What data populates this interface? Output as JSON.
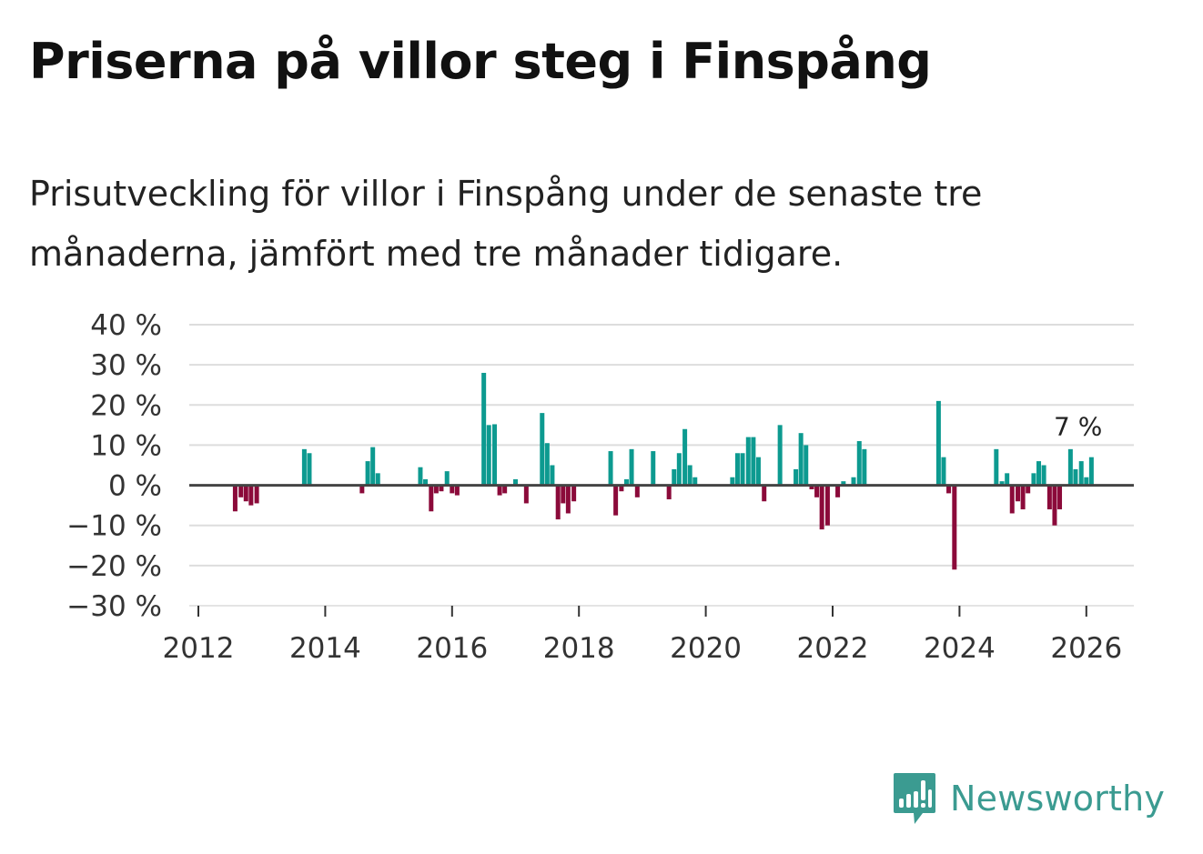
{
  "header": {
    "title": "Priserna på villor steg i Finspång",
    "subtitle": "Prisutveckling för villor i Finspång under de senaste tre månaderna, jämfört med tre månader tidigare."
  },
  "brand": {
    "name": "Newsworthy",
    "icon": "newsworthy-logo-icon",
    "color": "#3b9b91"
  },
  "colors": {
    "positive": "#0d9a90",
    "negative": "#8b0a3a",
    "grid": "#dddddd",
    "baseline": "#444444"
  },
  "chart_data": {
    "type": "bar",
    "title": "Priserna på villor steg i Finspång",
    "xlabel": "",
    "ylabel": "",
    "ylim": [
      -30,
      40
    ],
    "yticks": [
      -30,
      -20,
      -10,
      0,
      10,
      20,
      30,
      40
    ],
    "ytick_labels": [
      "−30 %",
      "−20 %",
      "−10 %",
      "0 %",
      "10 %",
      "20 %",
      "30 %",
      "40 %"
    ],
    "xlim": [
      2012,
      2026.8
    ],
    "xticks": [
      2012,
      2014,
      2016,
      2018,
      2020,
      2022,
      2024,
      2026
    ],
    "xtick_labels": [
      "2012",
      "2014",
      "2016",
      "2018",
      "2020",
      "2022",
      "2024",
      "2026"
    ],
    "last_value_label": "7 %",
    "series": [
      {
        "name": "Prisutveckling",
        "points": [
          {
            "x": 2012.58,
            "y": -6.5
          },
          {
            "x": 2012.67,
            "y": -3
          },
          {
            "x": 2012.75,
            "y": -4
          },
          {
            "x": 2012.83,
            "y": -5
          },
          {
            "x": 2012.92,
            "y": -4.5
          },
          {
            "x": 2013.67,
            "y": 9
          },
          {
            "x": 2013.75,
            "y": 8
          },
          {
            "x": 2014.58,
            "y": -2
          },
          {
            "x": 2014.67,
            "y": 6
          },
          {
            "x": 2014.75,
            "y": 9.5
          },
          {
            "x": 2014.83,
            "y": 3
          },
          {
            "x": 2015.5,
            "y": 4.5
          },
          {
            "x": 2015.58,
            "y": 1.5
          },
          {
            "x": 2015.67,
            "y": -6.5
          },
          {
            "x": 2015.75,
            "y": -2
          },
          {
            "x": 2015.83,
            "y": -1.5
          },
          {
            "x": 2015.92,
            "y": 3.5
          },
          {
            "x": 2016.0,
            "y": -2
          },
          {
            "x": 2016.08,
            "y": -2.5
          },
          {
            "x": 2016.5,
            "y": 28
          },
          {
            "x": 2016.58,
            "y": 15
          },
          {
            "x": 2016.67,
            "y": 15.2
          },
          {
            "x": 2016.75,
            "y": -2.5
          },
          {
            "x": 2016.83,
            "y": -2
          },
          {
            "x": 2017.0,
            "y": 1.5
          },
          {
            "x": 2017.17,
            "y": -4.5
          },
          {
            "x": 2017.42,
            "y": 18
          },
          {
            "x": 2017.5,
            "y": 10.5
          },
          {
            "x": 2017.58,
            "y": 5
          },
          {
            "x": 2017.67,
            "y": -8.5
          },
          {
            "x": 2017.75,
            "y": -4.5
          },
          {
            "x": 2017.83,
            "y": -7
          },
          {
            "x": 2017.92,
            "y": -4
          },
          {
            "x": 2018.5,
            "y": 8.5
          },
          {
            "x": 2018.58,
            "y": -7.5
          },
          {
            "x": 2018.67,
            "y": -1.5
          },
          {
            "x": 2018.75,
            "y": 1.5
          },
          {
            "x": 2018.83,
            "y": 9
          },
          {
            "x": 2018.92,
            "y": -3
          },
          {
            "x": 2019.17,
            "y": 8.5
          },
          {
            "x": 2019.42,
            "y": -3.5
          },
          {
            "x": 2019.5,
            "y": 4
          },
          {
            "x": 2019.58,
            "y": 8
          },
          {
            "x": 2019.67,
            "y": 14
          },
          {
            "x": 2019.75,
            "y": 5
          },
          {
            "x": 2019.83,
            "y": 2
          },
          {
            "x": 2020.42,
            "y": 2
          },
          {
            "x": 2020.5,
            "y": 8
          },
          {
            "x": 2020.58,
            "y": 8
          },
          {
            "x": 2020.67,
            "y": 12
          },
          {
            "x": 2020.75,
            "y": 12
          },
          {
            "x": 2020.83,
            "y": 7
          },
          {
            "x": 2020.92,
            "y": -4
          },
          {
            "x": 2021.17,
            "y": 15
          },
          {
            "x": 2021.42,
            "y": 4
          },
          {
            "x": 2021.5,
            "y": 13
          },
          {
            "x": 2021.58,
            "y": 10
          },
          {
            "x": 2021.67,
            "y": -1
          },
          {
            "x": 2021.75,
            "y": -3
          },
          {
            "x": 2021.83,
            "y": -11
          },
          {
            "x": 2021.92,
            "y": -10
          },
          {
            "x": 2022.08,
            "y": -3
          },
          {
            "x": 2022.17,
            "y": 1
          },
          {
            "x": 2022.33,
            "y": 2
          },
          {
            "x": 2022.42,
            "y": 11
          },
          {
            "x": 2022.5,
            "y": 9
          },
          {
            "x": 2023.67,
            "y": 21
          },
          {
            "x": 2023.75,
            "y": 7
          },
          {
            "x": 2023.83,
            "y": -2
          },
          {
            "x": 2023.92,
            "y": -21
          },
          {
            "x": 2024.58,
            "y": 9
          },
          {
            "x": 2024.67,
            "y": 1
          },
          {
            "x": 2024.75,
            "y": 3
          },
          {
            "x": 2024.83,
            "y": -7
          },
          {
            "x": 2024.92,
            "y": -4
          },
          {
            "x": 2025.0,
            "y": -6
          },
          {
            "x": 2025.08,
            "y": -2
          },
          {
            "x": 2025.17,
            "y": 3
          },
          {
            "x": 2025.25,
            "y": 6
          },
          {
            "x": 2025.33,
            "y": 5
          },
          {
            "x": 2025.42,
            "y": -6
          },
          {
            "x": 2025.5,
            "y": -10
          },
          {
            "x": 2025.58,
            "y": -6
          },
          {
            "x": 2025.75,
            "y": 9
          },
          {
            "x": 2025.83,
            "y": 4
          },
          {
            "x": 2025.92,
            "y": 6
          },
          {
            "x": 2026.0,
            "y": 2
          },
          {
            "x": 2026.08,
            "y": 7
          }
        ]
      }
    ]
  }
}
